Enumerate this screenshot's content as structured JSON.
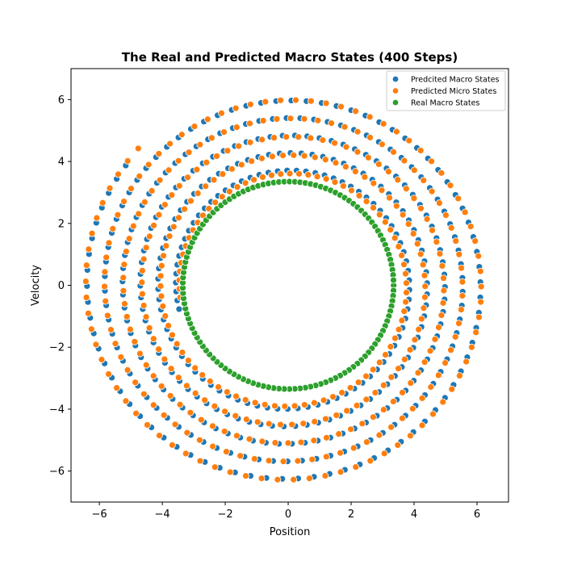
{
  "chart_data": {
    "type": "scatter",
    "title": "The Real and Predicted Macro States (400 Steps)",
    "xlabel": "Position",
    "ylabel": "Velocity",
    "xlim": [
      -6.9,
      7.0
    ],
    "ylim": [
      -7.0,
      7.0
    ],
    "xticks": [
      -6,
      -4,
      -2,
      0,
      2,
      4,
      6
    ],
    "yticks": [
      -6,
      -4,
      -2,
      0,
      2,
      4,
      6
    ],
    "xtick_labels": [
      "−6",
      "−4",
      "−2",
      "0",
      "2",
      "4",
      "6"
    ],
    "ytick_labels": [
      "−6",
      "−4",
      "−2",
      "0",
      "2",
      "4",
      "6"
    ],
    "legend_position": "top-right",
    "grid": false,
    "series": [
      {
        "name": "Predcited Macro States",
        "color": "#1f77b4",
        "pattern": {
          "n_points": 400,
          "r_start": 3.55,
          "r_end": 6.45,
          "turns": 5.15,
          "phase_deg": 191,
          "jitter_deg": 1.5
        }
      },
      {
        "name": "Predicted Micro States",
        "color": "#ff7f0e",
        "pattern": {
          "n_points": 400,
          "r_start": 3.45,
          "r_end": 6.5,
          "turns": 5.15,
          "phase_deg": 188,
          "jitter_deg": -1.5
        }
      },
      {
        "name": "Real Macro States",
        "color": "#2ca02c",
        "pattern": {
          "n_points": 125,
          "r_start": 3.35,
          "r_end": 3.35,
          "turns": 1,
          "phase_deg": 0
        }
      }
    ]
  }
}
